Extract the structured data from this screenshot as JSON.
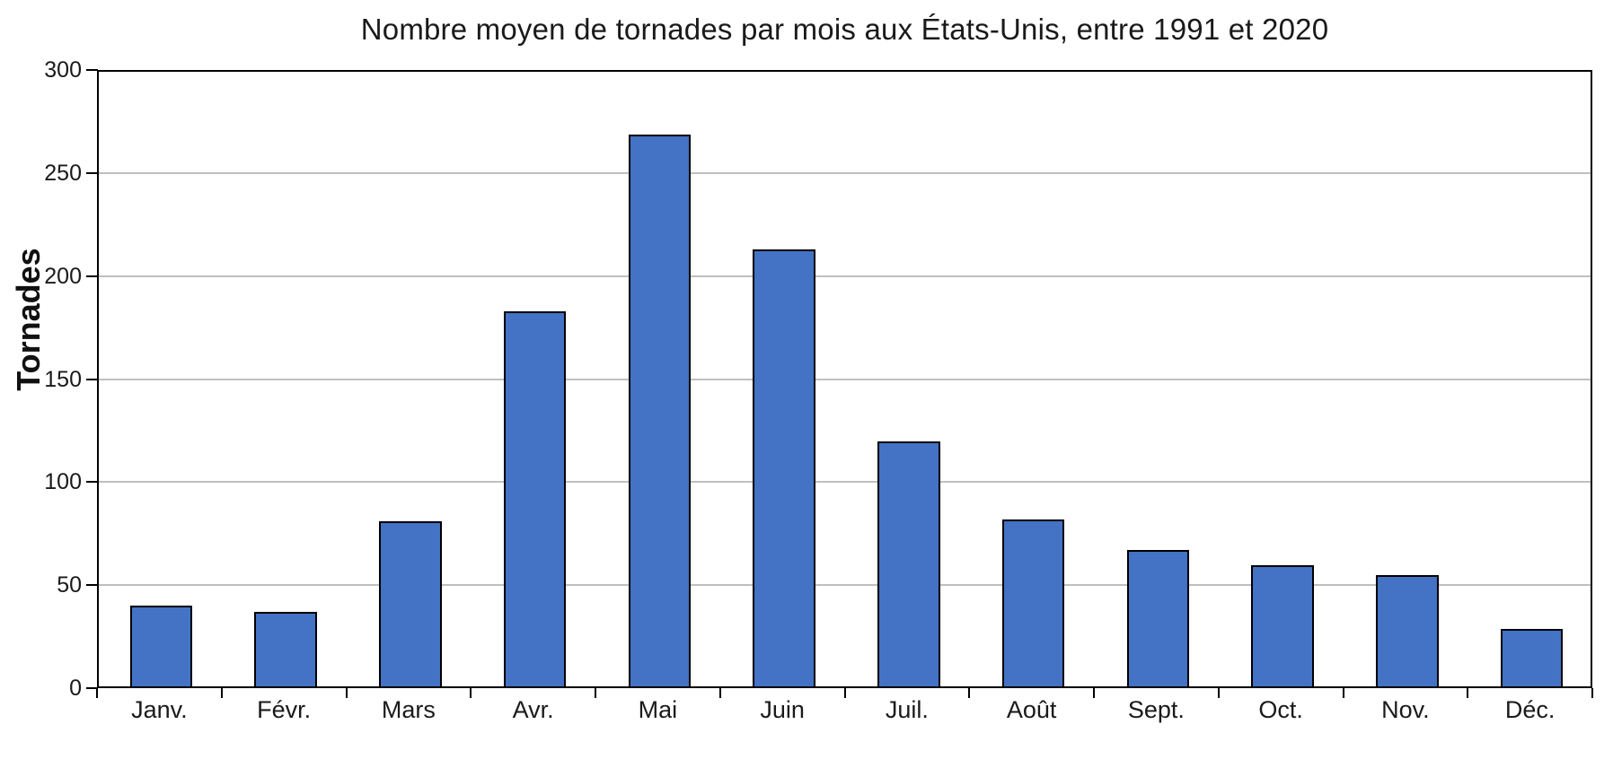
{
  "chart_data": {
    "type": "bar",
    "title": "Nombre moyen de tornades par mois aux États-Unis, entre 1991 et 2020",
    "ylabel": "Tornades",
    "xlabel": "",
    "categories": [
      "Janv.",
      "Févr.",
      "Mars",
      "Avr.",
      "Mai",
      "Juin",
      "Juil.",
      "Août",
      "Sept.",
      "Oct.",
      "Nov.",
      "Déc."
    ],
    "values": [
      39,
      36,
      80,
      182,
      268,
      212,
      119,
      81,
      66,
      59,
      54,
      28
    ],
    "ylim": [
      0,
      300
    ],
    "yticks": [
      0,
      50,
      100,
      150,
      200,
      250,
      300
    ],
    "grid": "horizontal-gray-every-50",
    "legend": "none",
    "colors": {
      "bar_fill": "#4472C4",
      "bar_border": "#000000",
      "gridline": "#BFBFBF",
      "axis": "#000000",
      "text": "#1A1A1A",
      "background": "#FFFFFF"
    }
  }
}
